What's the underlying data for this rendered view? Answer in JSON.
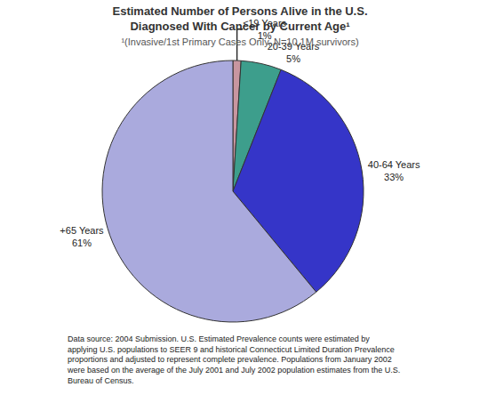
{
  "chart_data": {
    "type": "pie",
    "title": "Estimated Number of Persons Alive in the U.S.\nDiagnosed With Cancer by Current Age¹",
    "subtitle": "¹(Invasive/1st Primary Cases Only, N=10.1M survivors)",
    "categories": [
      "≤19 Years",
      "20-39 Years",
      "40-64 Years",
      "+65 Years"
    ],
    "values": [
      1,
      5,
      33,
      61
    ],
    "value_labels": [
      "1%",
      "5%",
      "33%",
      "61%"
    ],
    "data_labels": true,
    "colors": [
      "#c896a0",
      "#3d9e8c",
      "#3535c8",
      "#aaaadd"
    ],
    "annotations": [
      "Data source: 2004 Submission. U.S. Estimated Prevalence counts were estimated by\napplying U.S. populations to SEER 9 and historical Connecticut Limited Duration Prevalence\nproportions and adjusted to represent complete prevalence. Populations from January 2002\nwere based on the average of the July 2001 and July 2002 population estimates from the U.S.\nBureau of Census."
    ]
  }
}
